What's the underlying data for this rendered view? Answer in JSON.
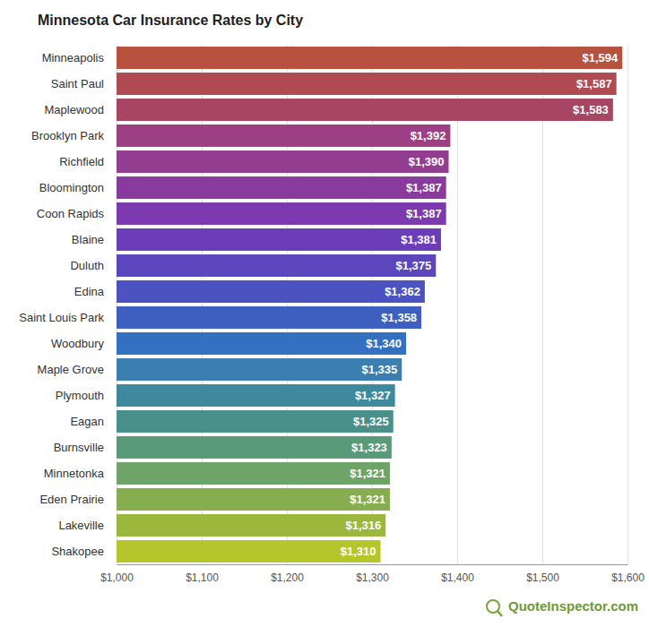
{
  "chart_data": {
    "type": "bar",
    "title": "Minnesota Car Insurance Rates by City",
    "source": "QuoteInspector.com",
    "orientation": "horizontal",
    "categories": [
      "Minneapolis",
      "Saint Paul",
      "Maplewood",
      "Brooklyn Park",
      "Richfield",
      "Bloomington",
      "Coon Rapids",
      "Blaine",
      "Duluth",
      "Edina",
      "Saint Louis Park",
      "Woodbury",
      "Maple Grove",
      "Plymouth",
      "Eagan",
      "Burnsville",
      "Minnetonka",
      "Eden Prairie",
      "Lakeville",
      "Shakopee"
    ],
    "values": [
      1594,
      1587,
      1583,
      1392,
      1390,
      1387,
      1387,
      1381,
      1375,
      1362,
      1358,
      1340,
      1335,
      1327,
      1325,
      1323,
      1321,
      1321,
      1316,
      1310
    ],
    "value_labels": [
      "$1,594",
      "$1,587",
      "$1,583",
      "$1,392",
      "$1,390",
      "$1,387",
      "$1,387",
      "$1,381",
      "$1,375",
      "$1,362",
      "$1,358",
      "$1,340",
      "$1,335",
      "$1,327",
      "$1,325",
      "$1,323",
      "$1,321",
      "$1,321",
      "$1,316",
      "$1,310"
    ],
    "colors": [
      "#b7523e",
      "#b04b52",
      "#a74563",
      "#9c3f83",
      "#933d90",
      "#893b9d",
      "#7d3aae",
      "#6c3db9",
      "#5b46bd",
      "#4c52bf",
      "#3d5fc0",
      "#3470c0",
      "#3a7fb0",
      "#3f899e",
      "#4a908a",
      "#5b9a78",
      "#6ea468",
      "#86ad50",
      "#9bb83c",
      "#b4c62b"
    ],
    "xlim": [
      1000,
      1600
    ],
    "xticks": [
      {
        "value": 1000,
        "label": "$1,000"
      },
      {
        "value": 1100,
        "label": "$1,100"
      },
      {
        "value": 1200,
        "label": "$1,200"
      },
      {
        "value": 1300,
        "label": "$1,300"
      },
      {
        "value": 1400,
        "label": "$1,400"
      },
      {
        "value": 1500,
        "label": "$1,500"
      },
      {
        "value": 1600,
        "label": "$1,600"
      }
    ],
    "grid": true,
    "data_labels": true
  }
}
